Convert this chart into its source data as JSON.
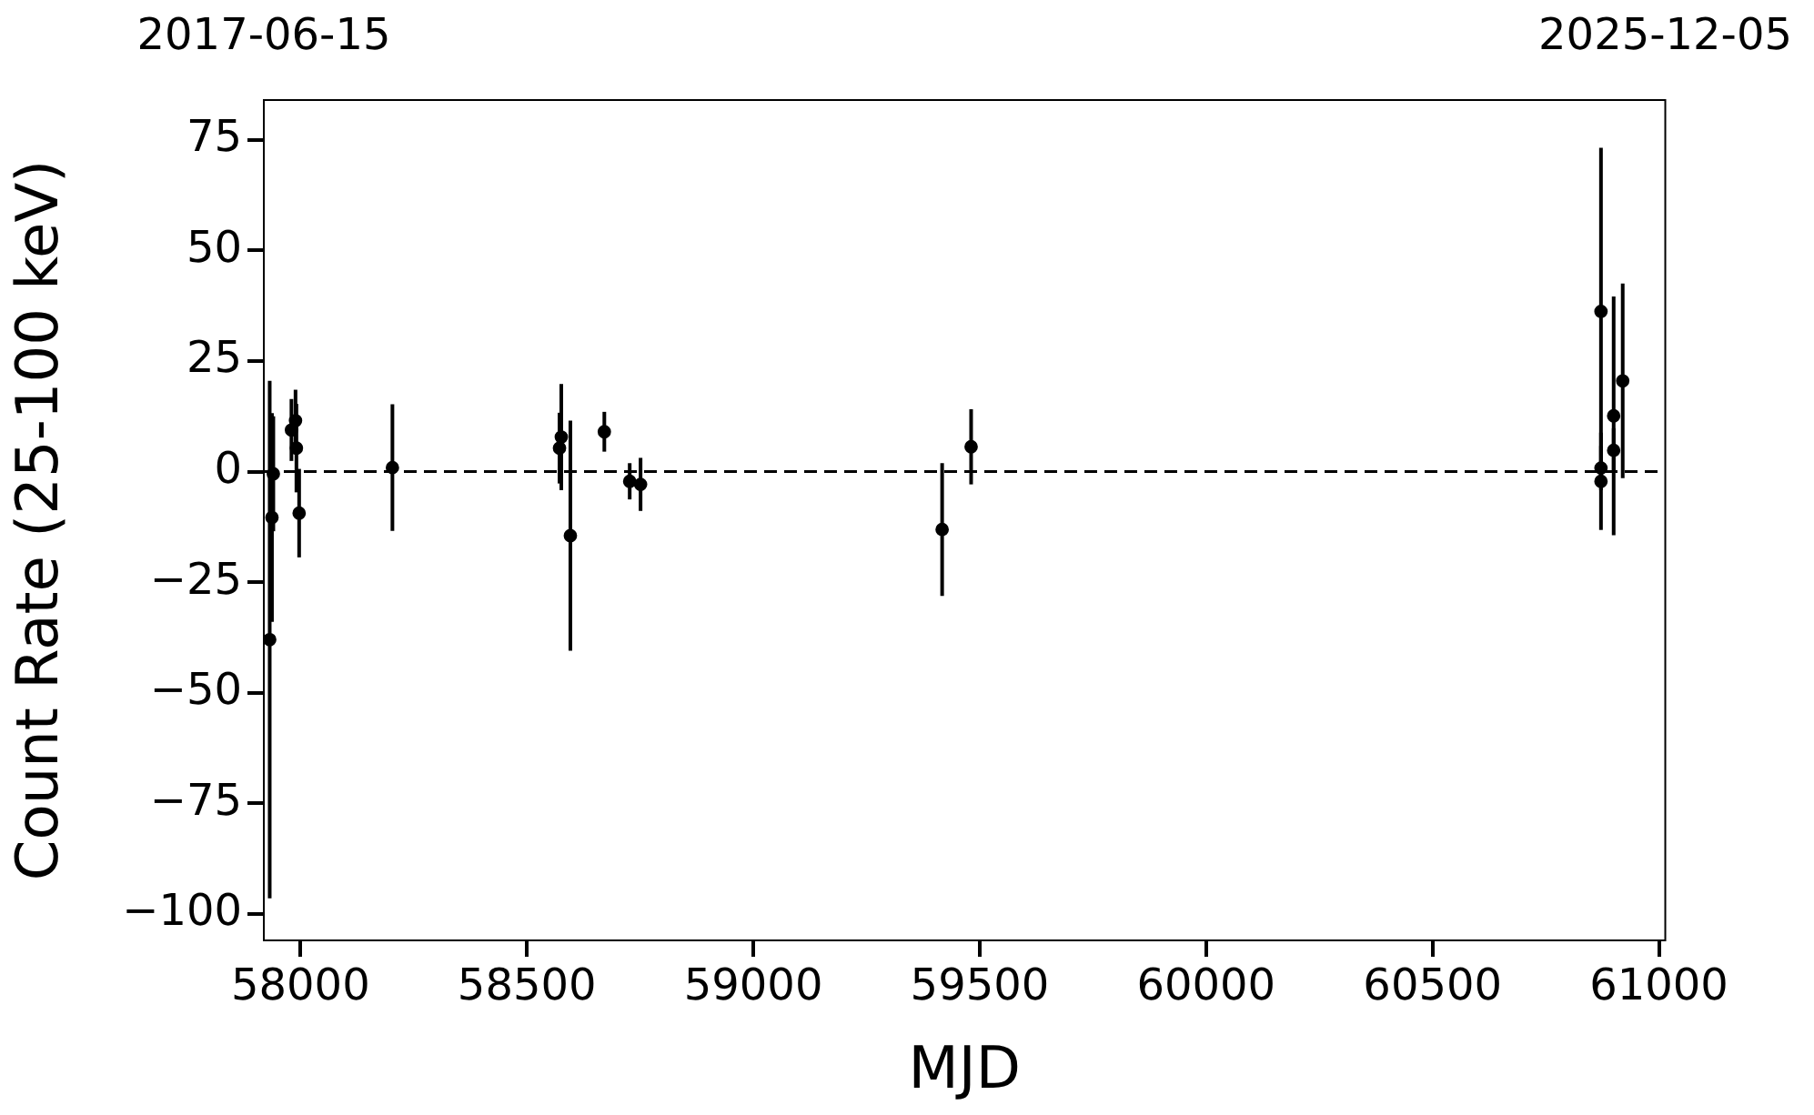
{
  "chart_data": {
    "type": "scatter",
    "xlabel": "MJD",
    "ylabel": "Count Rate (25-100 keV)",
    "x": [
      57932,
      57937,
      57940,
      57980,
      57989,
      57991,
      57997,
      58203,
      58572,
      58576,
      58596,
      58671,
      58727,
      58751,
      59417,
      59481,
      60872,
      60872,
      60872,
      60900,
      60900,
      60920
    ],
    "series": [
      {
        "color": "#000000",
        "values": [
          -38,
          -10.4,
          -0.5,
          9.4,
          11.5,
          5.3,
          -9.4,
          0.9,
          5.3,
          7.8,
          -14.5,
          9.0,
          -2.2,
          -2.9,
          -13.1,
          5.6,
          36.2,
          0.8,
          -2.2,
          12.6,
          4.8,
          20.5
        ],
        "errors": [
          58.5,
          23.6,
          13,
          7,
          7,
          10,
          10,
          14.3,
          8,
          12,
          26,
          4.5,
          4.1,
          6,
          15,
          8.5,
          37,
          5,
          11,
          27,
          5,
          22
        ]
      }
    ],
    "xlim": [
      57919,
      61014
    ],
    "xticks": [
      58000,
      58500,
      59000,
      59500,
      60000,
      60500,
      61000
    ],
    "x2lim": [
      "2017-06-15",
      "2025-12-05"
    ],
    "x2ticks": [
      "2017-06-15",
      "2025-12-05"
    ],
    "ylim": [
      -106,
      84
    ],
    "yticks": [
      -100,
      -75,
      -50,
      -25,
      0,
      25,
      50,
      75
    ],
    "ref_lines": [
      {
        "axis": "y",
        "value": 0,
        "color": "#000000",
        "line_style": "dashed"
      }
    ],
    "grid": false,
    "legend": false,
    "marker": "circle"
  }
}
